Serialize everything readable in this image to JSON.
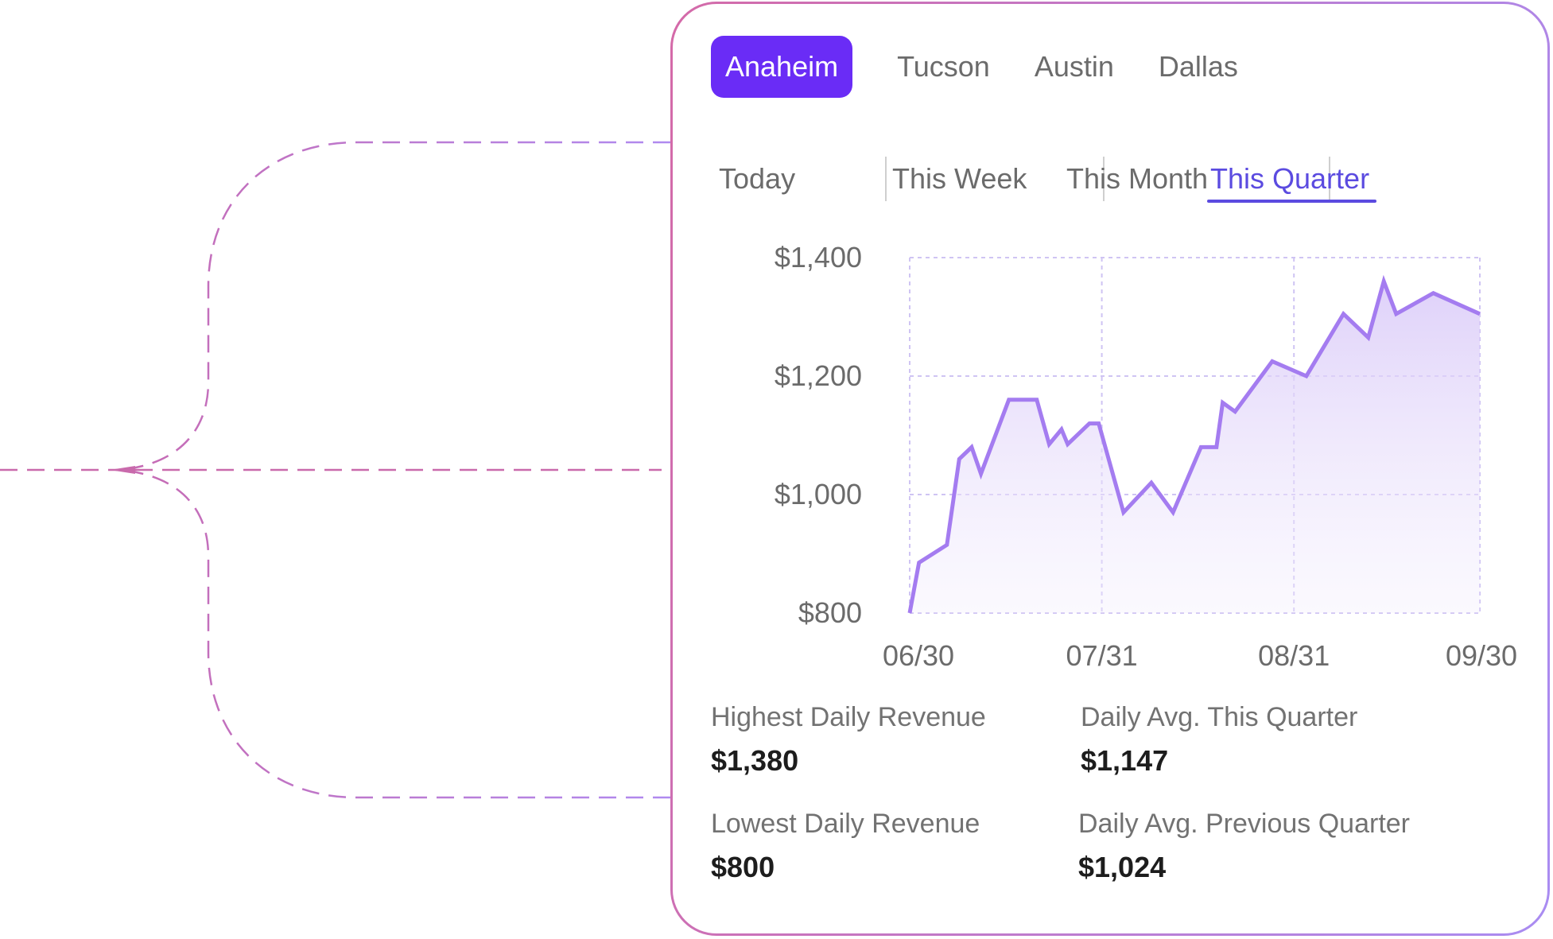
{
  "cities": {
    "items": [
      "Anaheim",
      "Tucson",
      "Austin",
      "Dallas"
    ],
    "active": "Anaheim"
  },
  "periods": {
    "items": [
      "Today",
      "This Week",
      "This Month",
      "This Quarter"
    ],
    "active": "This Quarter"
  },
  "colors": {
    "accent": "#6a2cf6",
    "active_period": "#5b4be0",
    "line": "#a47cf0",
    "fill": "#e9e0fb",
    "card_border_start": "#d46aa8",
    "card_border_end": "#a98cf2",
    "connector": "#b07ae8"
  },
  "chart_data": {
    "type": "area",
    "title": "",
    "xlabel": "",
    "ylabel": "",
    "ylim": [
      800,
      1400
    ],
    "y_ticks": [
      {
        "value": 1400,
        "label": "$1,400"
      },
      {
        "value": 1200,
        "label": "$1,200"
      },
      {
        "value": 1000,
        "label": "$1,000"
      },
      {
        "value": 800,
        "label": "$800"
      }
    ],
    "x_ticks": [
      {
        "day": 0,
        "label": "06/30"
      },
      {
        "day": 31,
        "label": "07/31"
      },
      {
        "day": 62,
        "label": "08/31"
      },
      {
        "day": 92,
        "label": "09/30"
      }
    ],
    "grid": true,
    "series": [
      {
        "name": "Daily Revenue",
        "points": [
          [
            0,
            800
          ],
          [
            1.5,
            885
          ],
          [
            6,
            915
          ],
          [
            8,
            1060
          ],
          [
            10,
            1080
          ],
          [
            11.5,
            1035
          ],
          [
            16,
            1160
          ],
          [
            20.5,
            1160
          ],
          [
            22.5,
            1085
          ],
          [
            24.5,
            1110
          ],
          [
            25.5,
            1085
          ],
          [
            29,
            1120
          ],
          [
            30.5,
            1120
          ],
          [
            34.5,
            970
          ],
          [
            39,
            1020
          ],
          [
            42.5,
            970
          ],
          [
            47,
            1080
          ],
          [
            49.5,
            1080
          ],
          [
            50.5,
            1155
          ],
          [
            52.5,
            1140
          ],
          [
            58.5,
            1225
          ],
          [
            64,
            1200
          ],
          [
            70,
            1305
          ],
          [
            74,
            1265
          ],
          [
            76.5,
            1360
          ],
          [
            78.5,
            1305
          ],
          [
            84.5,
            1340
          ],
          [
            92,
            1305
          ]
        ]
      }
    ]
  },
  "stats": {
    "highest_label": "Highest Daily Revenue",
    "highest_value": "$1,380",
    "avg_this_label": "Daily Avg. This Quarter",
    "avg_this_value": "$1,147",
    "lowest_label": "Lowest Daily Revenue",
    "lowest_value": "$800",
    "avg_prev_label": "Daily Avg. Previous Quarter",
    "avg_prev_value": "$1,024"
  }
}
